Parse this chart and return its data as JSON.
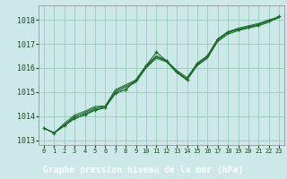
{
  "title": "Graphe pression niveau de la mer (hPa)",
  "bg_color": "#cce8e8",
  "plot_bg_color": "#cce8e8",
  "grid_color": "#99ccbb",
  "line_color": "#1a6b2a",
  "xlabel_bg": "#1a6b2a",
  "xlabel_fg": "#ffffff",
  "tick_color": "#1a4a1a",
  "xlim": [
    -0.5,
    23.5
  ],
  "ylim": [
    1012.8,
    1018.6
  ],
  "yticks": [
    1013,
    1014,
    1015,
    1016,
    1017,
    1018
  ],
  "xticks": [
    0,
    1,
    2,
    3,
    4,
    5,
    6,
    7,
    8,
    9,
    10,
    11,
    12,
    13,
    14,
    15,
    16,
    17,
    18,
    19,
    20,
    21,
    22,
    23
  ],
  "series": [
    [
      1013.5,
      1013.3,
      1013.6,
      1013.9,
      1014.05,
      1014.25,
      1014.35,
      1014.95,
      1015.1,
      1015.5,
      1016.05,
      1016.5,
      1016.3,
      1015.85,
      1015.5,
      1016.15,
      1016.45,
      1017.2,
      1017.5,
      1017.6,
      1017.7,
      1017.8,
      1017.95,
      1018.1
    ],
    [
      1013.5,
      1013.3,
      1013.6,
      1014.0,
      1014.1,
      1014.3,
      1014.35,
      1015.0,
      1015.2,
      1015.4,
      1016.0,
      1016.4,
      1016.25,
      1015.8,
      1015.5,
      1016.1,
      1016.4,
      1017.1,
      1017.4,
      1017.55,
      1017.65,
      1017.75,
      1017.9,
      1018.1
    ],
    [
      1013.5,
      1013.3,
      1013.65,
      1013.95,
      1014.15,
      1014.35,
      1014.4,
      1015.05,
      1015.25,
      1015.45,
      1016.05,
      1016.45,
      1016.28,
      1015.85,
      1015.55,
      1016.15,
      1016.45,
      1017.15,
      1017.45,
      1017.6,
      1017.7,
      1017.8,
      1017.95,
      1018.1
    ],
    [
      1013.5,
      1013.3,
      1013.7,
      1014.05,
      1014.2,
      1014.4,
      1014.42,
      1015.1,
      1015.3,
      1015.5,
      1016.1,
      1016.5,
      1016.3,
      1015.9,
      1015.6,
      1016.2,
      1016.5,
      1017.2,
      1017.5,
      1017.65,
      1017.75,
      1017.85,
      1018.0,
      1018.1
    ]
  ],
  "marker_series": [
    1013.5,
    1013.3,
    1013.6,
    1013.9,
    1014.05,
    1014.25,
    1014.35,
    1014.95,
    1015.1,
    1015.5,
    1016.1,
    1016.65,
    1016.3,
    1015.85,
    1015.5,
    1016.2,
    1016.5,
    1017.2,
    1017.5,
    1017.6,
    1017.7,
    1017.8,
    1017.95,
    1018.15
  ],
  "ytick_fontsize": 6,
  "xtick_fontsize": 5,
  "xlabel_fontsize": 7
}
